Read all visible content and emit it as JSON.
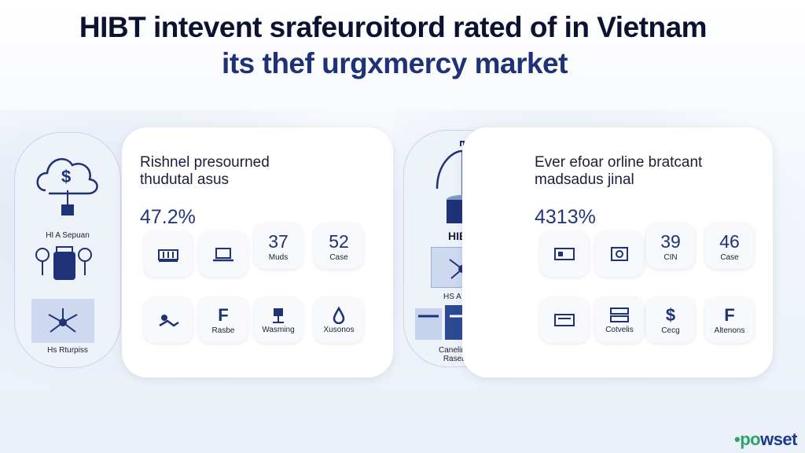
{
  "header": {
    "title_line1": "HIBT intevent srafeuroitord rated of in Vietnam",
    "title_line2": "its thef urgxmercy market"
  },
  "left_panel": {
    "side_label_top": "HI A Sepuan",
    "side_label_bottom": "Hs Rturpiss",
    "heading_line1": "Rishnel presourned",
    "heading_line2": "thudutal asus",
    "percent": "47.2%",
    "stats": [
      {
        "value": "37",
        "label": "Muds"
      },
      {
        "value": "52",
        "label": "Case"
      }
    ],
    "tiles_bottom": [
      {
        "icon": "hands-icon",
        "label": ""
      },
      {
        "icon": "f-letter-icon",
        "glyph": "F",
        "label": "Rasbe"
      },
      {
        "icon": "bot-icon",
        "label": "Wasming"
      },
      {
        "icon": "drop-icon",
        "label": "Xusonos"
      }
    ]
  },
  "right_panel": {
    "side_label_top": "HIBT",
    "side_label_mid": "HS A Iuetdisn",
    "side_label_bottom": "Canelin Puen Rasearens",
    "heading_line1": "Ever efoar orline bratcant",
    "heading_line2": "madsadus jinal",
    "percent": "4313%",
    "stats": [
      {
        "value": "39",
        "label": "CIN"
      },
      {
        "value": "46",
        "label": "Case"
      }
    ],
    "tiles_bottom": [
      {
        "icon": "terminal-icon",
        "label": ""
      },
      {
        "icon": "server-icon",
        "label": "Cotvelis"
      },
      {
        "icon": "dollar-icon",
        "glyph": "$",
        "label": "Cecg"
      },
      {
        "icon": "f-letter-icon",
        "glyph": "F",
        "label": "Altenons"
      }
    ]
  },
  "brand": {
    "part1": "po",
    "part2": "wset",
    "prefix": "•"
  }
}
